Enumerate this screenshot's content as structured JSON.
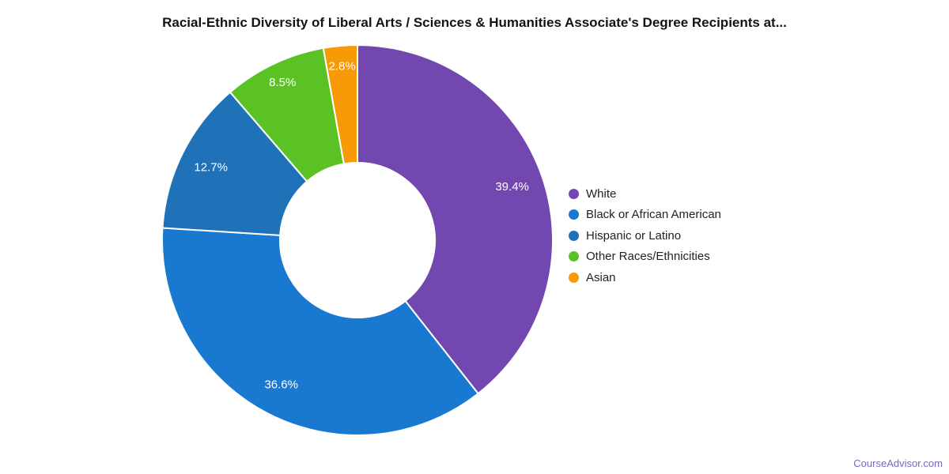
{
  "chart_data": {
    "type": "pie",
    "subtype": "donut",
    "title": "Racial-Ethnic Diversity of Liberal Arts / Sciences & Humanities Associate's Degree Recipients at...",
    "unit": "%",
    "legend_position": "right",
    "start_angle_deg_from_top": 0,
    "direction": "clockwise",
    "slice_border_color": "#FFFFFF",
    "label_color": "#FFFFFF",
    "slices": [
      {
        "name": "White",
        "value": 39.4,
        "label": "39.4%",
        "color": "#7248B0"
      },
      {
        "name": "Black or African American",
        "value": 36.6,
        "label": "36.6%",
        "color": "#1979D1"
      },
      {
        "name": "Hispanic or Latino",
        "value": 12.7,
        "label": "12.7%",
        "color": "#1F72B8"
      },
      {
        "name": "Other Races/Ethnicities",
        "value": 8.5,
        "label": "8.5%",
        "color": "#5BC226"
      },
      {
        "name": "Asian",
        "value": 2.8,
        "label": "2.8%",
        "color": "#F89A06"
      }
    ]
  },
  "footer": {
    "watermark": "CourseAdvisor.com",
    "link_color": "#7A67C5"
  }
}
